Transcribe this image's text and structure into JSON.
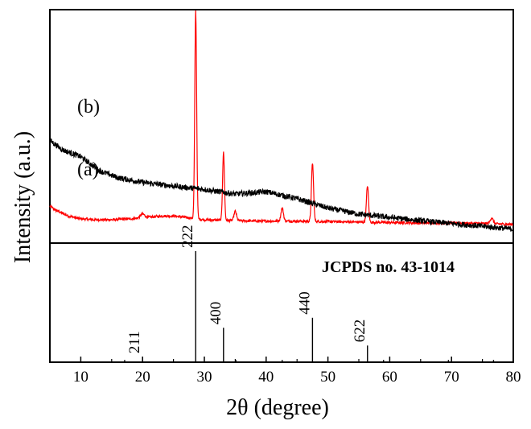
{
  "chart_data": {
    "type": "line",
    "xlabel": "2θ (degree)",
    "ylabel": "Intensity (a.u.)",
    "xlim": [
      5,
      80
    ],
    "x_ticks": [
      "10",
      "20",
      "30",
      "40",
      "50",
      "60",
      "70",
      "80"
    ],
    "x_tick_values": [
      10,
      20,
      30,
      40,
      50,
      60,
      70,
      80
    ],
    "y_ticks_shown": false,
    "series": [
      {
        "name": "(b)",
        "color": "#ff0000",
        "baseline": [
          [
            5,
            0.79
          ],
          [
            6,
            0.7
          ],
          [
            8,
            0.58
          ],
          [
            10,
            0.52
          ],
          [
            12,
            0.5
          ],
          [
            15,
            0.5
          ],
          [
            18,
            0.52
          ],
          [
            20,
            0.54
          ],
          [
            23,
            0.58
          ],
          [
            25,
            0.58
          ],
          [
            27,
            0.55
          ],
          [
            30,
            0.5
          ],
          [
            35,
            0.48
          ],
          [
            40,
            0.47
          ],
          [
            45,
            0.47
          ],
          [
            50,
            0.46
          ],
          [
            55,
            0.45
          ],
          [
            60,
            0.44
          ],
          [
            65,
            0.43
          ],
          [
            70,
            0.43
          ],
          [
            75,
            0.42
          ],
          [
            80,
            0.4
          ]
        ],
        "peaks": [
          [
            20.0,
            0.08,
            0.35
          ],
          [
            28.6,
            4.45,
            0.15
          ],
          [
            33.1,
            1.45,
            0.15
          ],
          [
            35.0,
            0.2,
            0.2
          ],
          [
            42.6,
            0.28,
            0.2
          ],
          [
            47.5,
            1.25,
            0.17
          ],
          [
            56.4,
            0.78,
            0.17
          ],
          [
            76.5,
            0.12,
            0.25
          ]
        ],
        "noise": 0.055
      },
      {
        "name": "(a)",
        "color": "#000000",
        "baseline": [
          [
            5,
            2.2
          ],
          [
            7,
            2.0
          ],
          [
            10,
            1.85
          ],
          [
            13,
            1.55
          ],
          [
            16,
            1.4
          ],
          [
            20,
            1.3
          ],
          [
            25,
            1.22
          ],
          [
            30,
            1.15
          ],
          [
            35,
            1.05
          ],
          [
            40,
            1.1
          ],
          [
            45,
            0.95
          ],
          [
            50,
            0.75
          ],
          [
            55,
            0.62
          ],
          [
            60,
            0.55
          ],
          [
            65,
            0.48
          ],
          [
            70,
            0.42
          ],
          [
            75,
            0.36
          ],
          [
            80,
            0.3
          ]
        ],
        "peaks": [],
        "noise": 0.12
      }
    ],
    "reference": {
      "title": "JCPDS no. 43-1014",
      "reflections": [
        {
          "x": 17.1,
          "intensity": 0.02,
          "label": ""
        },
        {
          "x": 20.0,
          "intensity": 0.05,
          "label": "211"
        },
        {
          "x": 28.6,
          "intensity": 1.0,
          "label": "222"
        },
        {
          "x": 33.1,
          "intensity": 0.31,
          "label": "400"
        },
        {
          "x": 35.1,
          "intensity": 0.02,
          "label": ""
        },
        {
          "x": 40.0,
          "intensity": 0.02,
          "label": ""
        },
        {
          "x": 42.6,
          "intensity": 0.02,
          "label": ""
        },
        {
          "x": 47.5,
          "intensity": 0.4,
          "label": "440"
        },
        {
          "x": 56.4,
          "intensity": 0.15,
          "label": "622"
        },
        {
          "x": 59.0,
          "intensity": 0.02,
          "label": ""
        },
        {
          "x": 69.5,
          "intensity": 0.02,
          "label": ""
        },
        {
          "x": 76.8,
          "intensity": 0.02,
          "label": ""
        }
      ]
    }
  }
}
